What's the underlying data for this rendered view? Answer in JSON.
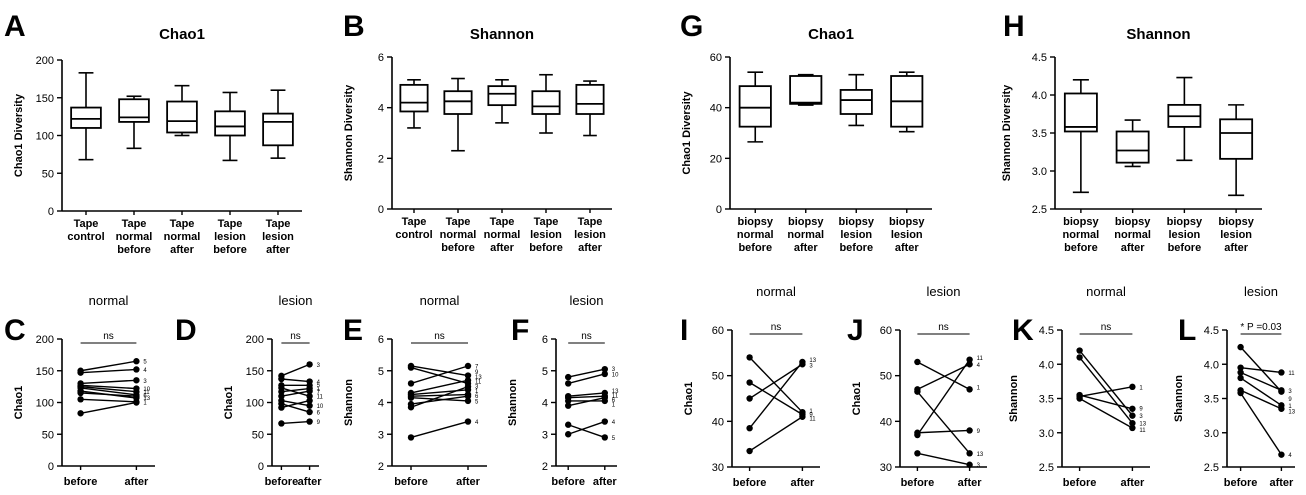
{
  "chart_data": [
    {
      "type": "box",
      "letter": "A",
      "title": "Chao1",
      "ylabel": "Chao1 Diversity",
      "ylim": [
        0,
        200
      ],
      "yticks": [
        0,
        50,
        100,
        150,
        200
      ],
      "categories": [
        [
          "Tape",
          "control"
        ],
        [
          "Tape",
          "normal",
          "before"
        ],
        [
          "Tape",
          "normal",
          "after"
        ],
        [
          "Tape",
          "lesion",
          "before"
        ],
        [
          "Tape",
          "lesion",
          "after"
        ]
      ],
      "boxes": [
        {
          "min": 68,
          "q1": 110,
          "median": 122,
          "q3": 137,
          "max": 183
        },
        {
          "min": 83,
          "q1": 118,
          "median": 124,
          "q3": 148,
          "max": 152
        },
        {
          "min": 100,
          "q1": 104,
          "median": 119,
          "q3": 145,
          "max": 166
        },
        {
          "min": 67,
          "q1": 100,
          "median": 112,
          "q3": 132,
          "max": 157
        },
        {
          "min": 70,
          "q1": 87,
          "median": 118,
          "q3": 129,
          "max": 160
        }
      ]
    },
    {
      "type": "box",
      "letter": "B",
      "title": "Shannon",
      "ylabel": "Shannon Diversity",
      "ylim": [
        0,
        6
      ],
      "yticks": [
        0,
        2,
        4,
        6
      ],
      "categories": [
        [
          "Tape",
          "control"
        ],
        [
          "Tape",
          "normal",
          "before"
        ],
        [
          "Tape",
          "normal",
          "after"
        ],
        [
          "Tape",
          "lesion",
          "before"
        ],
        [
          "Tape",
          "lesion",
          "after"
        ]
      ],
      "boxes": [
        {
          "min": 3.2,
          "q1": 3.85,
          "median": 4.2,
          "q3": 4.9,
          "max": 5.1
        },
        {
          "min": 2.3,
          "q1": 3.75,
          "median": 4.25,
          "q3": 4.65,
          "max": 5.15
        },
        {
          "min": 3.4,
          "q1": 4.1,
          "median": 4.55,
          "q3": 4.85,
          "max": 5.1
        },
        {
          "min": 3.0,
          "q1": 3.75,
          "median": 4.05,
          "q3": 4.65,
          "max": 5.3
        },
        {
          "min": 2.9,
          "q1": 3.75,
          "median": 4.15,
          "q3": 4.9,
          "max": 5.05
        }
      ]
    },
    {
      "type": "box",
      "letter": "G",
      "title": "Chao1",
      "ylabel": "Chao1 Diversity",
      "ylim": [
        0,
        60
      ],
      "yticks": [
        0,
        20,
        40,
        60
      ],
      "categories": [
        [
          "biopsy",
          "normal",
          "before"
        ],
        [
          "biopsy",
          "normal",
          "after"
        ],
        [
          "biopsy",
          "lesion",
          "before"
        ],
        [
          "biopsy",
          "lesion",
          "after"
        ]
      ],
      "boxes": [
        {
          "min": 26.5,
          "q1": 32.5,
          "median": 40,
          "q3": 48.5,
          "max": 54
        },
        {
          "min": 41,
          "q1": 41.5,
          "median": 42,
          "q3": 52.5,
          "max": 53
        },
        {
          "min": 33,
          "q1": 37.5,
          "median": 43,
          "q3": 47,
          "max": 53
        },
        {
          "min": 30.5,
          "q1": 32.5,
          "median": 42.5,
          "q3": 52.5,
          "max": 54
        }
      ]
    },
    {
      "type": "box",
      "letter": "H",
      "title": "Shannon",
      "ylabel": "Shannon Diversity",
      "ylim": [
        2.5,
        4.5
      ],
      "yticks": [
        2.5,
        3.0,
        3.5,
        4.0,
        4.5
      ],
      "categories": [
        [
          "biopsy",
          "normal",
          "before"
        ],
        [
          "biopsy",
          "normal",
          "after"
        ],
        [
          "biopsy",
          "lesion",
          "before"
        ],
        [
          "biopsy",
          "lesion",
          "after"
        ]
      ],
      "boxes": [
        {
          "min": 2.72,
          "q1": 3.52,
          "median": 3.58,
          "q3": 4.02,
          "max": 4.2
        },
        {
          "min": 3.06,
          "q1": 3.11,
          "median": 3.27,
          "q3": 3.52,
          "max": 3.67
        },
        {
          "min": 3.14,
          "q1": 3.58,
          "median": 3.72,
          "q3": 3.87,
          "max": 4.23
        },
        {
          "min": 2.68,
          "q1": 3.16,
          "median": 3.5,
          "q3": 3.68,
          "max": 3.87
        }
      ]
    },
    {
      "type": "paired",
      "letter": "C",
      "title": "normal",
      "ylabel": "Chao1",
      "annotation": "ns",
      "ylim": [
        0,
        200
      ],
      "yticks": [
        0,
        50,
        100,
        150,
        200
      ],
      "categories": [
        "before",
        "after"
      ],
      "pairs": [
        [
          150,
          165
        ],
        [
          147,
          152
        ],
        [
          130,
          135
        ],
        [
          127,
          122
        ],
        [
          125,
          117
        ],
        [
          123,
          112
        ],
        [
          118,
          107
        ],
        [
          115,
          110
        ],
        [
          105,
          101
        ],
        [
          83,
          100
        ]
      ],
      "labels": [
        {
          "text": "5",
          "v": 165
        },
        {
          "text": "4",
          "v": 152
        },
        {
          "text": "3",
          "v": 135
        },
        {
          "text": "10",
          "v": 122
        },
        {
          "text": "11",
          "v": 117
        },
        {
          "text": "6",
          "v": 112
        },
        {
          "text": "13",
          "v": 108
        },
        {
          "text": "1",
          "v": 101
        }
      ]
    },
    {
      "type": "paired",
      "letter": "D",
      "title": "lesion",
      "ylabel": "Chao1",
      "annotation": "ns",
      "ylim": [
        0,
        200
      ],
      "yticks": [
        0,
        50,
        100,
        150,
        200
      ],
      "categories": [
        "before",
        "after"
      ],
      "pairs": [
        [
          142,
          160
        ],
        [
          137,
          133
        ],
        [
          127,
          127
        ],
        [
          123,
          110
        ],
        [
          117,
          122
        ],
        [
          110,
          118
        ],
        [
          103,
          95
        ],
        [
          98,
          85
        ],
        [
          92,
          103
        ],
        [
          67,
          70
        ]
      ],
      "labels": [
        {
          "text": "3",
          "v": 160
        },
        {
          "text": "4",
          "v": 133
        },
        {
          "text": "5",
          "v": 128
        },
        {
          "text": "1",
          "v": 122
        },
        {
          "text": "7",
          "v": 117
        },
        {
          "text": "11",
          "v": 110
        },
        {
          "text": "10",
          "v": 95
        },
        {
          "text": "6",
          "v": 85
        },
        {
          "text": "9",
          "v": 70
        }
      ]
    },
    {
      "type": "paired",
      "letter": "E",
      "title": "normal",
      "ylabel": "Shannon",
      "annotation": "ns",
      "ylim": [
        2,
        6
      ],
      "yticks": [
        2,
        3,
        4,
        5,
        6
      ],
      "categories": [
        "before",
        "after"
      ],
      "pairs": [
        [
          5.15,
          4.85
        ],
        [
          5.1,
          4.6
        ],
        [
          4.6,
          5.15
        ],
        [
          4.3,
          4.7
        ],
        [
          4.25,
          4.4
        ],
        [
          4.2,
          4.25
        ],
        [
          4.15,
          4.05
        ],
        [
          3.95,
          4.2
        ],
        [
          3.85,
          4.5
        ],
        [
          2.9,
          3.4
        ]
      ],
      "labels": [
        {
          "text": "7",
          "v": 5.15
        },
        {
          "text": "9",
          "v": 4.97
        },
        {
          "text": "13",
          "v": 4.82
        },
        {
          "text": "11",
          "v": 4.67
        },
        {
          "text": "3",
          "v": 4.52
        },
        {
          "text": "1",
          "v": 4.38
        },
        {
          "text": "6",
          "v": 4.22
        },
        {
          "text": "5",
          "v": 4.05
        },
        {
          "text": "4",
          "v": 3.4
        }
      ]
    },
    {
      "type": "paired",
      "letter": "F",
      "title": "lesion",
      "ylabel": "Shannon",
      "annotation": "ns",
      "ylim": [
        2,
        6
      ],
      "yticks": [
        2,
        3,
        4,
        5,
        6
      ],
      "categories": [
        "before",
        "after"
      ],
      "pairs": [
        [
          4.8,
          5.05
        ],
        [
          4.6,
          4.9
        ],
        [
          4.2,
          4.3
        ],
        [
          4.15,
          4.2
        ],
        [
          4.05,
          4.05
        ],
        [
          3.9,
          4.15
        ],
        [
          3.3,
          2.9
        ],
        [
          3.0,
          3.4
        ]
      ],
      "labels": [
        {
          "text": "3",
          "v": 5.07
        },
        {
          "text": "10",
          "v": 4.9
        },
        {
          "text": "13",
          "v": 4.38
        },
        {
          "text": "11",
          "v": 4.24
        },
        {
          "text": "6",
          "v": 4.1
        },
        {
          "text": "1",
          "v": 3.95
        },
        {
          "text": "4",
          "v": 3.4
        },
        {
          "text": "5",
          "v": 2.9
        }
      ]
    },
    {
      "type": "paired",
      "letter": "I",
      "title": "normal",
      "ylabel": "Chao1",
      "annotation": "ns",
      "ylim": [
        30,
        60
      ],
      "yticks": [
        30,
        40,
        50,
        60
      ],
      "categories": [
        "before",
        "after"
      ],
      "pairs": [
        [
          54,
          42
        ],
        [
          48.5,
          41.5
        ],
        [
          45,
          52.5
        ],
        [
          38.5,
          53
        ],
        [
          33.5,
          41
        ]
      ],
      "labels": [
        {
          "text": "13",
          "v": 53.5
        },
        {
          "text": "3",
          "v": 52.3
        },
        {
          "text": "1",
          "v": 42.4
        },
        {
          "text": "9",
          "v": 41.6
        },
        {
          "text": "11",
          "v": 40.7
        }
      ]
    },
    {
      "type": "paired",
      "letter": "J",
      "title": "lesion",
      "ylabel": "Chao1",
      "annotation": "ns",
      "ylim": [
        30,
        60
      ],
      "yticks": [
        30,
        40,
        50,
        60
      ],
      "categories": [
        "before",
        "after"
      ],
      "pairs": [
        [
          53,
          47
        ],
        [
          47,
          52.5
        ],
        [
          46.5,
          33
        ],
        [
          37.5,
          38
        ],
        [
          37,
          53.5
        ],
        [
          33,
          30.5
        ]
      ],
      "labels": [
        {
          "text": "11",
          "v": 54
        },
        {
          "text": "4",
          "v": 52.5
        },
        {
          "text": "1",
          "v": 47.5
        },
        {
          "text": "9",
          "v": 38
        },
        {
          "text": "13",
          "v": 33
        },
        {
          "text": "3",
          "v": 30.5
        }
      ]
    },
    {
      "type": "paired",
      "letter": "K",
      "title": "normal",
      "ylabel": "Shannon",
      "annotation": "ns",
      "ylim": [
        2.5,
        4.5
      ],
      "yticks": [
        2.5,
        3.0,
        3.5,
        4.0,
        4.5
      ],
      "categories": [
        "before",
        "after"
      ],
      "pairs": [
        [
          4.2,
          3.25
        ],
        [
          4.1,
          3.14
        ],
        [
          3.55,
          3.35
        ],
        [
          3.53,
          3.67
        ],
        [
          3.5,
          3.07
        ]
      ],
      "labels": [
        {
          "text": "1",
          "v": 3.67
        },
        {
          "text": "9",
          "v": 3.36
        },
        {
          "text": "3",
          "v": 3.25
        },
        {
          "text": "13",
          "v": 3.14
        },
        {
          "text": "11",
          "v": 3.05
        }
      ]
    },
    {
      "type": "paired",
      "letter": "L",
      "title": "lesion",
      "ylabel": "Shannon",
      "annotation": "* P =0.03",
      "ylim": [
        2.5,
        4.5
      ],
      "yticks": [
        2.5,
        3.0,
        3.5,
        4.0,
        4.5
      ],
      "categories": [
        "before",
        "after"
      ],
      "pairs": [
        [
          4.25,
          3.6
        ],
        [
          3.95,
          3.88
        ],
        [
          3.88,
          3.62
        ],
        [
          3.8,
          3.4
        ],
        [
          3.62,
          3.35
        ],
        [
          3.58,
          2.68
        ]
      ],
      "labels": [
        {
          "text": "11",
          "v": 3.88
        },
        {
          "text": "3",
          "v": 3.62
        },
        {
          "text": "9",
          "v": 3.5
        },
        {
          "text": "1",
          "v": 3.4
        },
        {
          "text": "13",
          "v": 3.32
        },
        {
          "text": "4",
          "v": 2.68
        }
      ]
    }
  ]
}
